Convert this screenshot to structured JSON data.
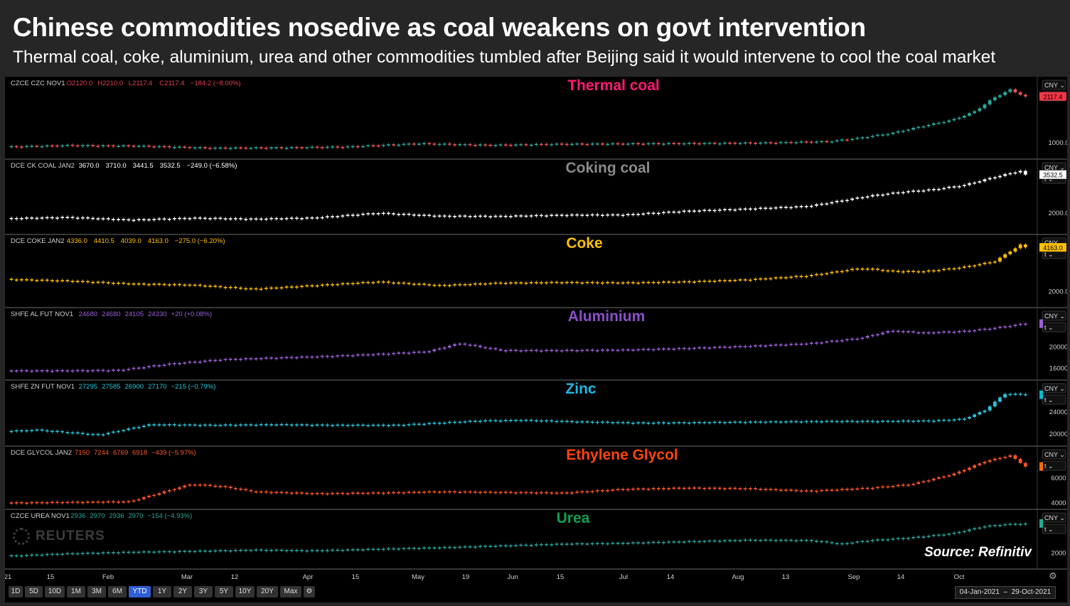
{
  "title": "Chinese commodities nosedive as coal weakens on govt intervention",
  "subtitle": "Thermal coal, coke, aluminium, urea and other commodities tumbled after Beijing said it would intervene to cool the coal market",
  "source": "Source: Refinitiv",
  "watermark": "REUTERS",
  "x_ticks": [
    "21",
    "15",
    "Feb",
    "Mar",
    "12",
    "Apr",
    "15",
    "May",
    "19",
    "Jun",
    "15",
    "Jul",
    "14",
    "Aug",
    "13",
    "Sep",
    "14",
    "Oct"
  ],
  "range_buttons": [
    "1D",
    "5D",
    "10D",
    "1M",
    "3M",
    "6M",
    "YTD",
    "1Y",
    "2Y",
    "3Y",
    "5Y",
    "10Y",
    "20Y",
    "Max"
  ],
  "active_range": "YTD",
  "date_range": {
    "start": "04-Jan-2021",
    "end": "29-Oct-2021",
    "sep": "–"
  },
  "axis_currency": "CNY",
  "axis_unit": "t",
  "chart_data": [
    {
      "type": "line",
      "name": "Thermal coal",
      "color": "#ff1a75",
      "header": {
        "contract": "CZCE CZC NOV1",
        "o": "O2120.0",
        "h": "H2210.0",
        "l": "L2117.4",
        "c": "C2117.4",
        "change": "−184.2 (−8.00%)",
        "color": "#e0405a"
      },
      "last_label": "2117.4",
      "last_color": "#f23645",
      "yticks": [
        {
          "label": "1000.0",
          "v": 1000
        }
      ],
      "ylim": [
        700,
        2500
      ],
      "up_color": "#26a69a",
      "down_color": "#ef5350",
      "x": [
        0,
        0.06,
        0.13,
        0.2,
        0.27,
        0.33,
        0.4,
        0.47,
        0.53,
        0.6,
        0.67,
        0.73,
        0.8,
        0.83,
        0.86,
        0.89,
        0.92,
        0.94,
        0.96,
        0.975,
        0.99
      ],
      "y": [
        900,
        935,
        920,
        870,
        880,
        900,
        980,
        940,
        965,
        975,
        985,
        995,
        1030,
        1120,
        1230,
        1400,
        1560,
        1750,
        2100,
        2290,
        2117
      ]
    },
    {
      "type": "line",
      "name": "Coking coal",
      "color": "#8a8a8a",
      "header": {
        "contract": "DCE CK COAL JAN2",
        "o": "3670.0",
        "h": "3710.0",
        "l": "3441.5",
        "c": "3532.5",
        "change": "−249.0 (−6.58%)",
        "color": "#ffffff"
      },
      "last_label": "3532.5",
      "last_color": "#ffffff",
      "yticks": [
        {
          "label": "2000.0",
          "v": 2000
        }
      ],
      "ylim": [
        1300,
        4000
      ],
      "up_color": "#ffffff",
      "down_color": "#ffffff",
      "x": [
        0,
        0.06,
        0.12,
        0.18,
        0.24,
        0.3,
        0.36,
        0.42,
        0.48,
        0.54,
        0.6,
        0.66,
        0.72,
        0.78,
        0.84,
        0.87,
        0.9,
        0.93,
        0.96,
        0.985,
        0.99
      ],
      "y": [
        1780,
        1830,
        1720,
        1800,
        1760,
        1810,
        2000,
        1880,
        1870,
        1920,
        1930,
        2080,
        2170,
        2280,
        2700,
        2850,
        2950,
        3120,
        3450,
        3700,
        3532
      ]
    },
    {
      "type": "line",
      "name": "Coke",
      "color": "#ffc000",
      "header": {
        "contract": "DCE COKE JAN2",
        "o": "4336.0",
        "h": "4410.5",
        "l": "4039.0",
        "c": "4163.0",
        "change": "−275.0 (−6.20%)",
        "color": "#ffc000"
      },
      "last_label": "4163.0",
      "last_color": "#ffc000",
      "yticks": [
        {
          "label": "2000.0",
          "v": 2000
        }
      ],
      "ylim": [
        1400,
        4600
      ],
      "up_color": "#ffc000",
      "down_color": "#ffc000",
      "x": [
        0,
        0.06,
        0.12,
        0.18,
        0.24,
        0.3,
        0.36,
        0.42,
        0.48,
        0.54,
        0.6,
        0.66,
        0.72,
        0.78,
        0.83,
        0.86,
        0.89,
        0.93,
        0.96,
        0.985,
        0.99
      ],
      "y": [
        2600,
        2520,
        2380,
        2320,
        2120,
        2300,
        2480,
        2300,
        2420,
        2450,
        2430,
        2480,
        2580,
        2780,
        3150,
        3000,
        2980,
        3200,
        3480,
        4300,
        4163
      ]
    },
    {
      "type": "line",
      "name": "Aluminium",
      "color": "#8a4fc8",
      "header": {
        "contract": "SHFE AL FUT NOV1",
        "o": "24680",
        "h": "24680",
        "l": "24105",
        "c": "24330",
        "change": "+20 (+0.08%)",
        "color": "#9c5fd6"
      },
      "last_label": "",
      "last_color": "#9c5fd6",
      "yticks": [
        {
          "label": "20000",
          "v": 20000
        },
        {
          "label": "16000",
          "v": 16000
        }
      ],
      "ylim": [
        14500,
        26500
      ],
      "up_color": "#9c5fd6",
      "down_color": "#9c5fd6",
      "x": [
        0,
        0.06,
        0.11,
        0.16,
        0.21,
        0.26,
        0.31,
        0.36,
        0.41,
        0.44,
        0.48,
        0.54,
        0.6,
        0.66,
        0.72,
        0.78,
        0.83,
        0.86,
        0.89,
        0.93,
        0.96,
        0.99
      ],
      "y": [
        15500,
        15500,
        15600,
        16800,
        17600,
        17900,
        18200,
        18600,
        19100,
        20600,
        19300,
        19300,
        19400,
        19700,
        20100,
        20600,
        21600,
        23000,
        22600,
        22900,
        23500,
        24330
      ]
    },
    {
      "type": "line",
      "name": "Zinc",
      "color": "#1fb7e6",
      "header": {
        "contract": "SHFE ZN FUT NOV1",
        "o": "27295",
        "h": "27585",
        "l": "26900",
        "c": "27170",
        "change": "−215 (−0.79%)",
        "color": "#26c6da"
      },
      "last_label": "",
      "last_color": "#00bcd4",
      "yticks": [
        {
          "label": "24000",
          "v": 24000
        },
        {
          "label": "20000",
          "v": 20000
        }
      ],
      "ylim": [
        18500,
        29000
      ],
      "up_color": "#26c6da",
      "down_color": "#26c6da",
      "x": [
        0,
        0.03,
        0.09,
        0.14,
        0.2,
        0.26,
        0.32,
        0.38,
        0.43,
        0.46,
        0.5,
        0.56,
        0.62,
        0.68,
        0.74,
        0.8,
        0.85,
        0.9,
        0.93,
        0.95,
        0.97,
        0.99
      ],
      "y": [
        20500,
        20700,
        19800,
        21700,
        21600,
        21700,
        21600,
        21600,
        22100,
        22400,
        22500,
        22200,
        22000,
        22100,
        22200,
        22300,
        22300,
        22400,
        22700,
        24200,
        27300,
        27170
      ]
    },
    {
      "type": "line",
      "name": "Ethylene Glycol",
      "color": "#ff4500",
      "header": {
        "contract": "DCE GLYCOL JAN2",
        "o": "7150",
        "h": "7244",
        "l": "6769",
        "c": "6918",
        "change": "−439 (−5.97%)",
        "color": "#ff5722"
      },
      "last_label": "",
      "last_color": "#ff6d00",
      "yticks": [
        {
          "label": "6000",
          "v": 6000
        },
        {
          "label": "4000",
          "v": 4000
        }
      ],
      "ylim": [
        3800,
        8200
      ],
      "up_color": "#ff5722",
      "down_color": "#ff5722",
      "x": [
        0,
        0.06,
        0.12,
        0.15,
        0.18,
        0.21,
        0.24,
        0.3,
        0.36,
        0.42,
        0.48,
        0.54,
        0.6,
        0.66,
        0.72,
        0.78,
        0.84,
        0.88,
        0.92,
        0.95,
        0.975,
        0.99
      ],
      "y": [
        4000,
        4050,
        4100,
        4800,
        5500,
        5300,
        4900,
        4750,
        4800,
        4900,
        4850,
        4800,
        5100,
        5200,
        5150,
        4950,
        5200,
        5500,
        6300,
        7300,
        7800,
        6918
      ]
    },
    {
      "type": "line",
      "name": "Urea",
      "color": "#10a050",
      "header": {
        "contract": "CZCE UREA NOV1",
        "o": "2936",
        "h": "2970",
        "l": "2936",
        "c": "2970",
        "change": "−154 (−4.93%)",
        "color": "#26a69a"
      },
      "last_label": "",
      "last_color": "#22ab94",
      "yticks": [
        {
          "label": "2000",
          "v": 2000
        }
      ],
      "ylim": [
        1600,
        3300
      ],
      "up_color": "#26a69a",
      "down_color": "#26a69a",
      "x": [
        0,
        0.06,
        0.12,
        0.18,
        0.24,
        0.3,
        0.36,
        0.42,
        0.48,
        0.54,
        0.6,
        0.66,
        0.72,
        0.78,
        0.81,
        0.84,
        0.88,
        0.92,
        0.95,
        0.97,
        0.99
      ],
      "y": [
        1900,
        1980,
        2030,
        2060,
        2100,
        2080,
        2130,
        2180,
        2240,
        2300,
        2330,
        2380,
        2430,
        2420,
        2300,
        2420,
        2510,
        2650,
        2880,
        2950,
        2970
      ]
    }
  ]
}
